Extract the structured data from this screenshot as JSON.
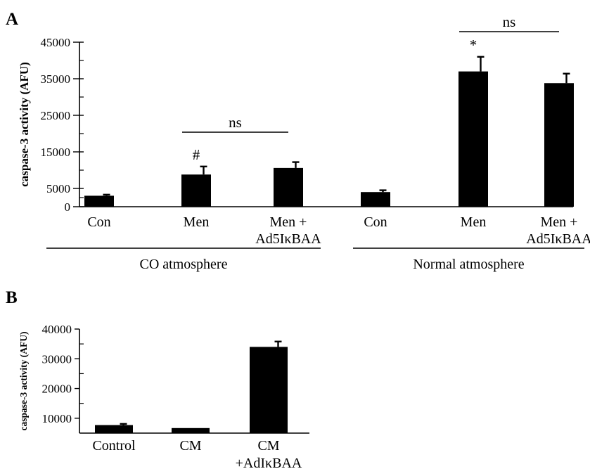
{
  "panels": {
    "a": {
      "letter": "A"
    },
    "b": {
      "letter": "B"
    }
  },
  "chart_data": [
    {
      "type": "bar",
      "panel": "A",
      "ylabel": "caspase-3 activity (AFU)",
      "xlabel": "",
      "ylim": [
        0,
        45000
      ],
      "yticks": [
        0,
        5000,
        15000,
        25000,
        35000,
        45000
      ],
      "categories": [
        "Con",
        "Men",
        "Men +\nAd5IκBAA",
        "Con",
        "Men",
        "Men +\nAd5IκBAA"
      ],
      "values": [
        3000,
        8800,
        10600,
        4000,
        37000,
        33800
      ],
      "errors": [
        300,
        2200,
        1600,
        500,
        4000,
        2600
      ],
      "bar_color": "#000000",
      "groups": [
        {
          "label": "CO atmosphere",
          "categories": [
            0,
            1,
            2
          ]
        },
        {
          "label": "Normal atmosphere",
          "categories": [
            3,
            4,
            5
          ]
        }
      ],
      "annotations": [
        {
          "text": "#",
          "category": 1
        },
        {
          "text": "*",
          "category": 4
        }
      ],
      "comparisons": [
        {
          "text": "ns",
          "from": 1,
          "to": 2
        },
        {
          "text": "ns",
          "from": 4,
          "to": 5
        }
      ]
    },
    {
      "type": "bar",
      "panel": "B",
      "ylabel": "caspase-3 activity (AFU)",
      "xlabel": "",
      "ylim": [
        5000,
        40000
      ],
      "yticks": [
        10000,
        20000,
        30000,
        40000
      ],
      "categories": [
        "Control",
        "CM",
        "CM\n+AdIκBAA"
      ],
      "values": [
        7700,
        6700,
        34000
      ],
      "errors": [
        400,
        0,
        1800
      ],
      "bar_color": "#000000"
    }
  ]
}
